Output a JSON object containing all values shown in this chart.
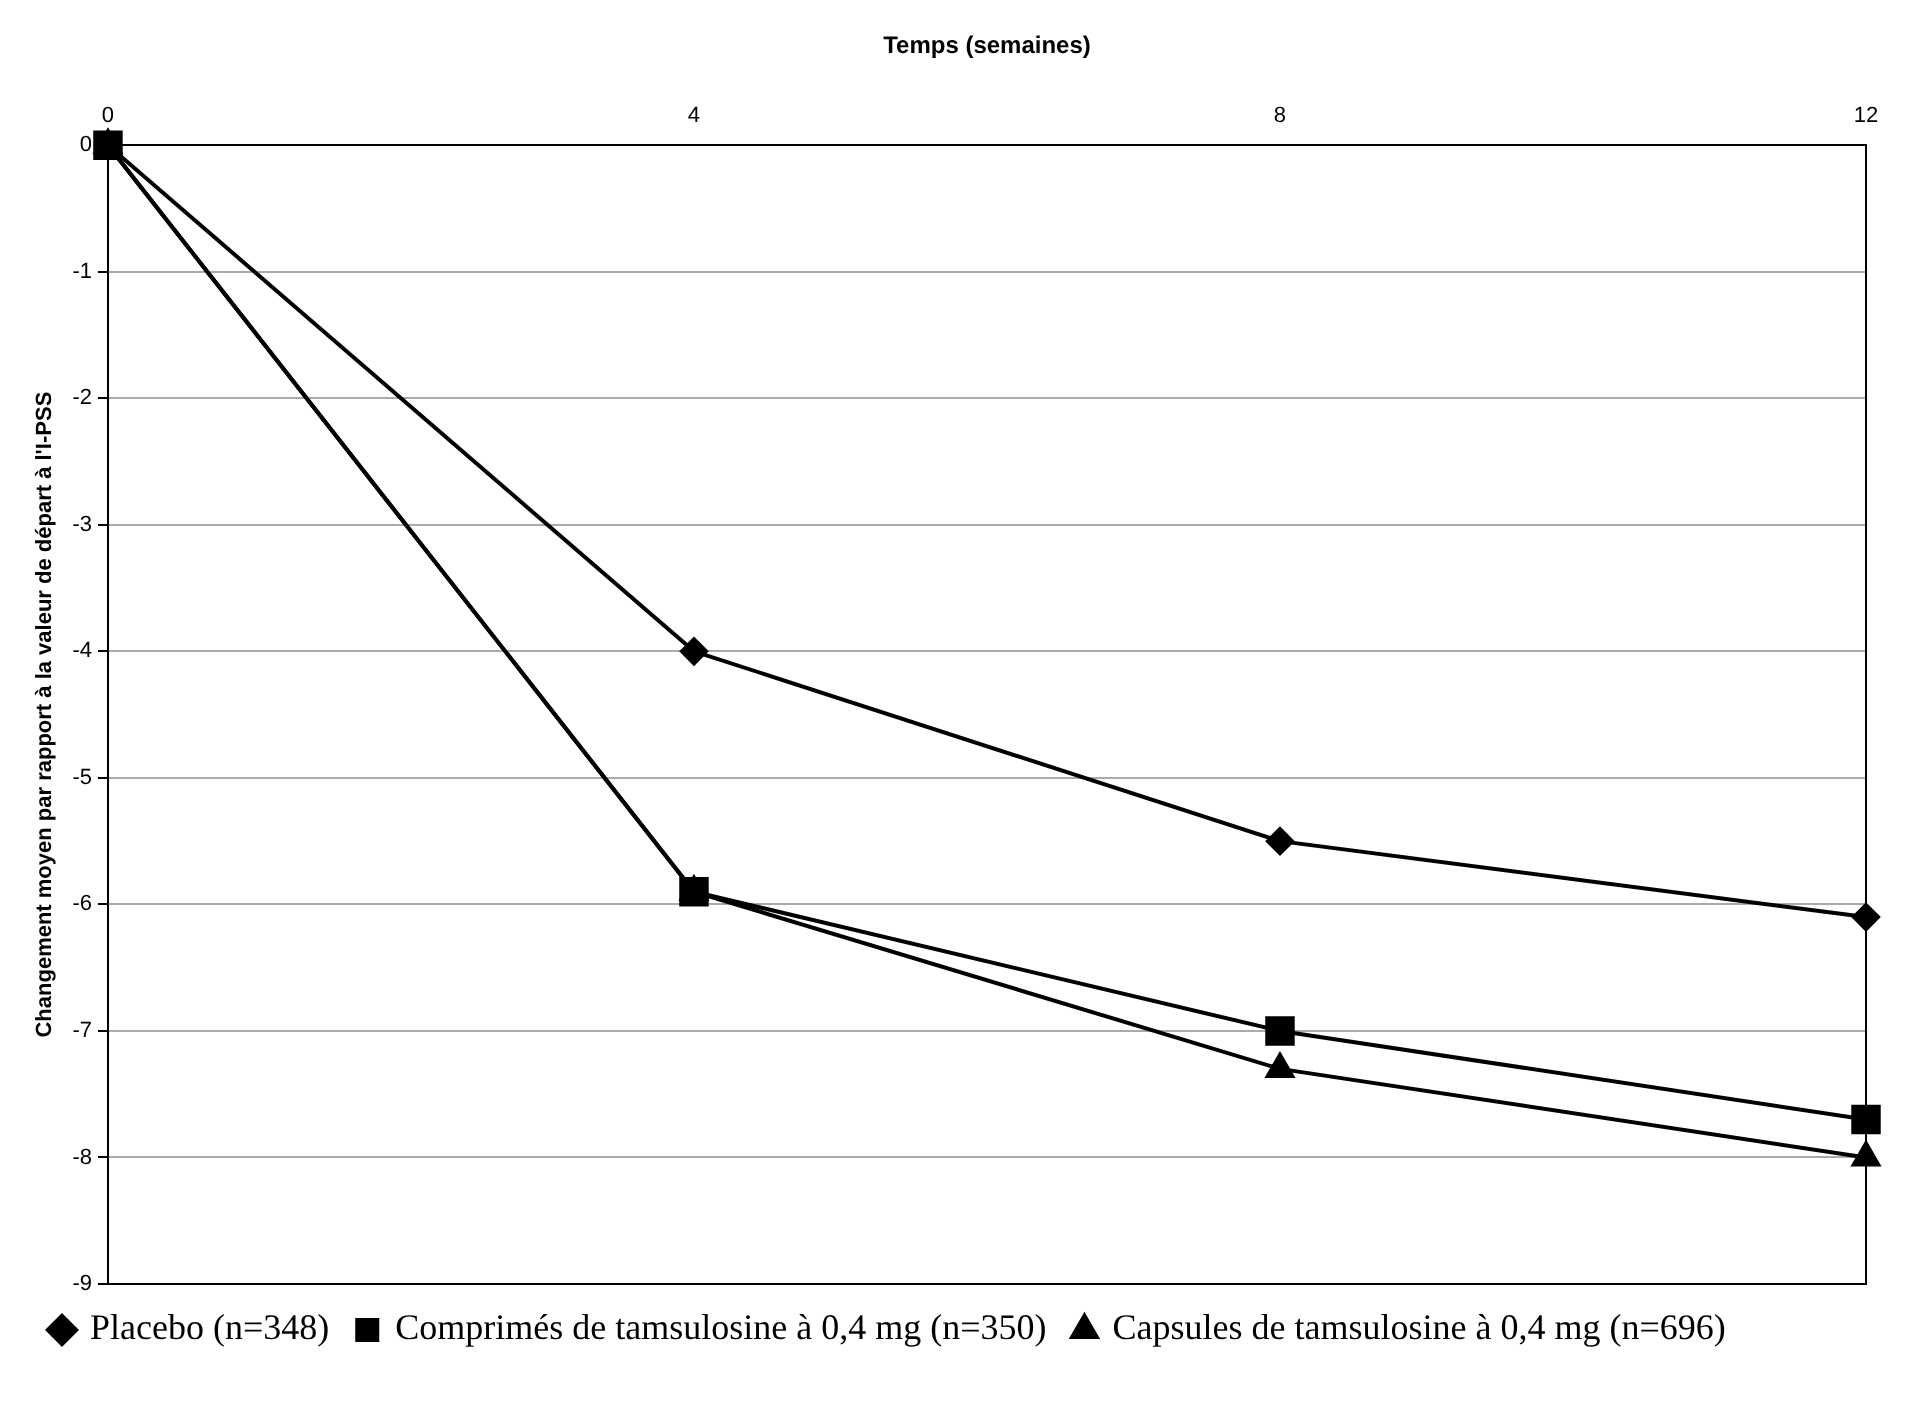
{
  "chart_data": {
    "type": "line",
    "xlabel": "Temps (semaines)",
    "ylabel": "Changement moyen par rapport à la valeur de départ à l'I-PSS",
    "x": [
      0,
      4,
      8,
      12
    ],
    "xlim": [
      0,
      12
    ],
    "xticks": [
      0,
      4,
      8,
      12
    ],
    "ylim": [
      -9,
      0
    ],
    "yticks": [
      -9,
      -8,
      -7,
      -6,
      -5,
      -4,
      -3,
      -2,
      -1,
      0
    ],
    "grid": "y",
    "legend": "bottom",
    "line_style": "solid",
    "series": [
      {
        "name": "Placebo (n=348)",
        "color": "#000000",
        "marker": "diamond",
        "values": [
          0,
          -4.0,
          -5.5,
          -6.1
        ]
      },
      {
        "name": "Comprimés de tamsulosine à 0,4 mg (n=350)",
        "color": "#000000",
        "marker": "square",
        "values": [
          0,
          -5.9,
          -7.0,
          -7.7
        ]
      },
      {
        "name": "Capsules de tamsulosine à 0,4 mg (n=696)",
        "color": "#000000",
        "marker": "triangle",
        "values": [
          0,
          -5.9,
          -7.3,
          -8.0
        ]
      }
    ]
  }
}
